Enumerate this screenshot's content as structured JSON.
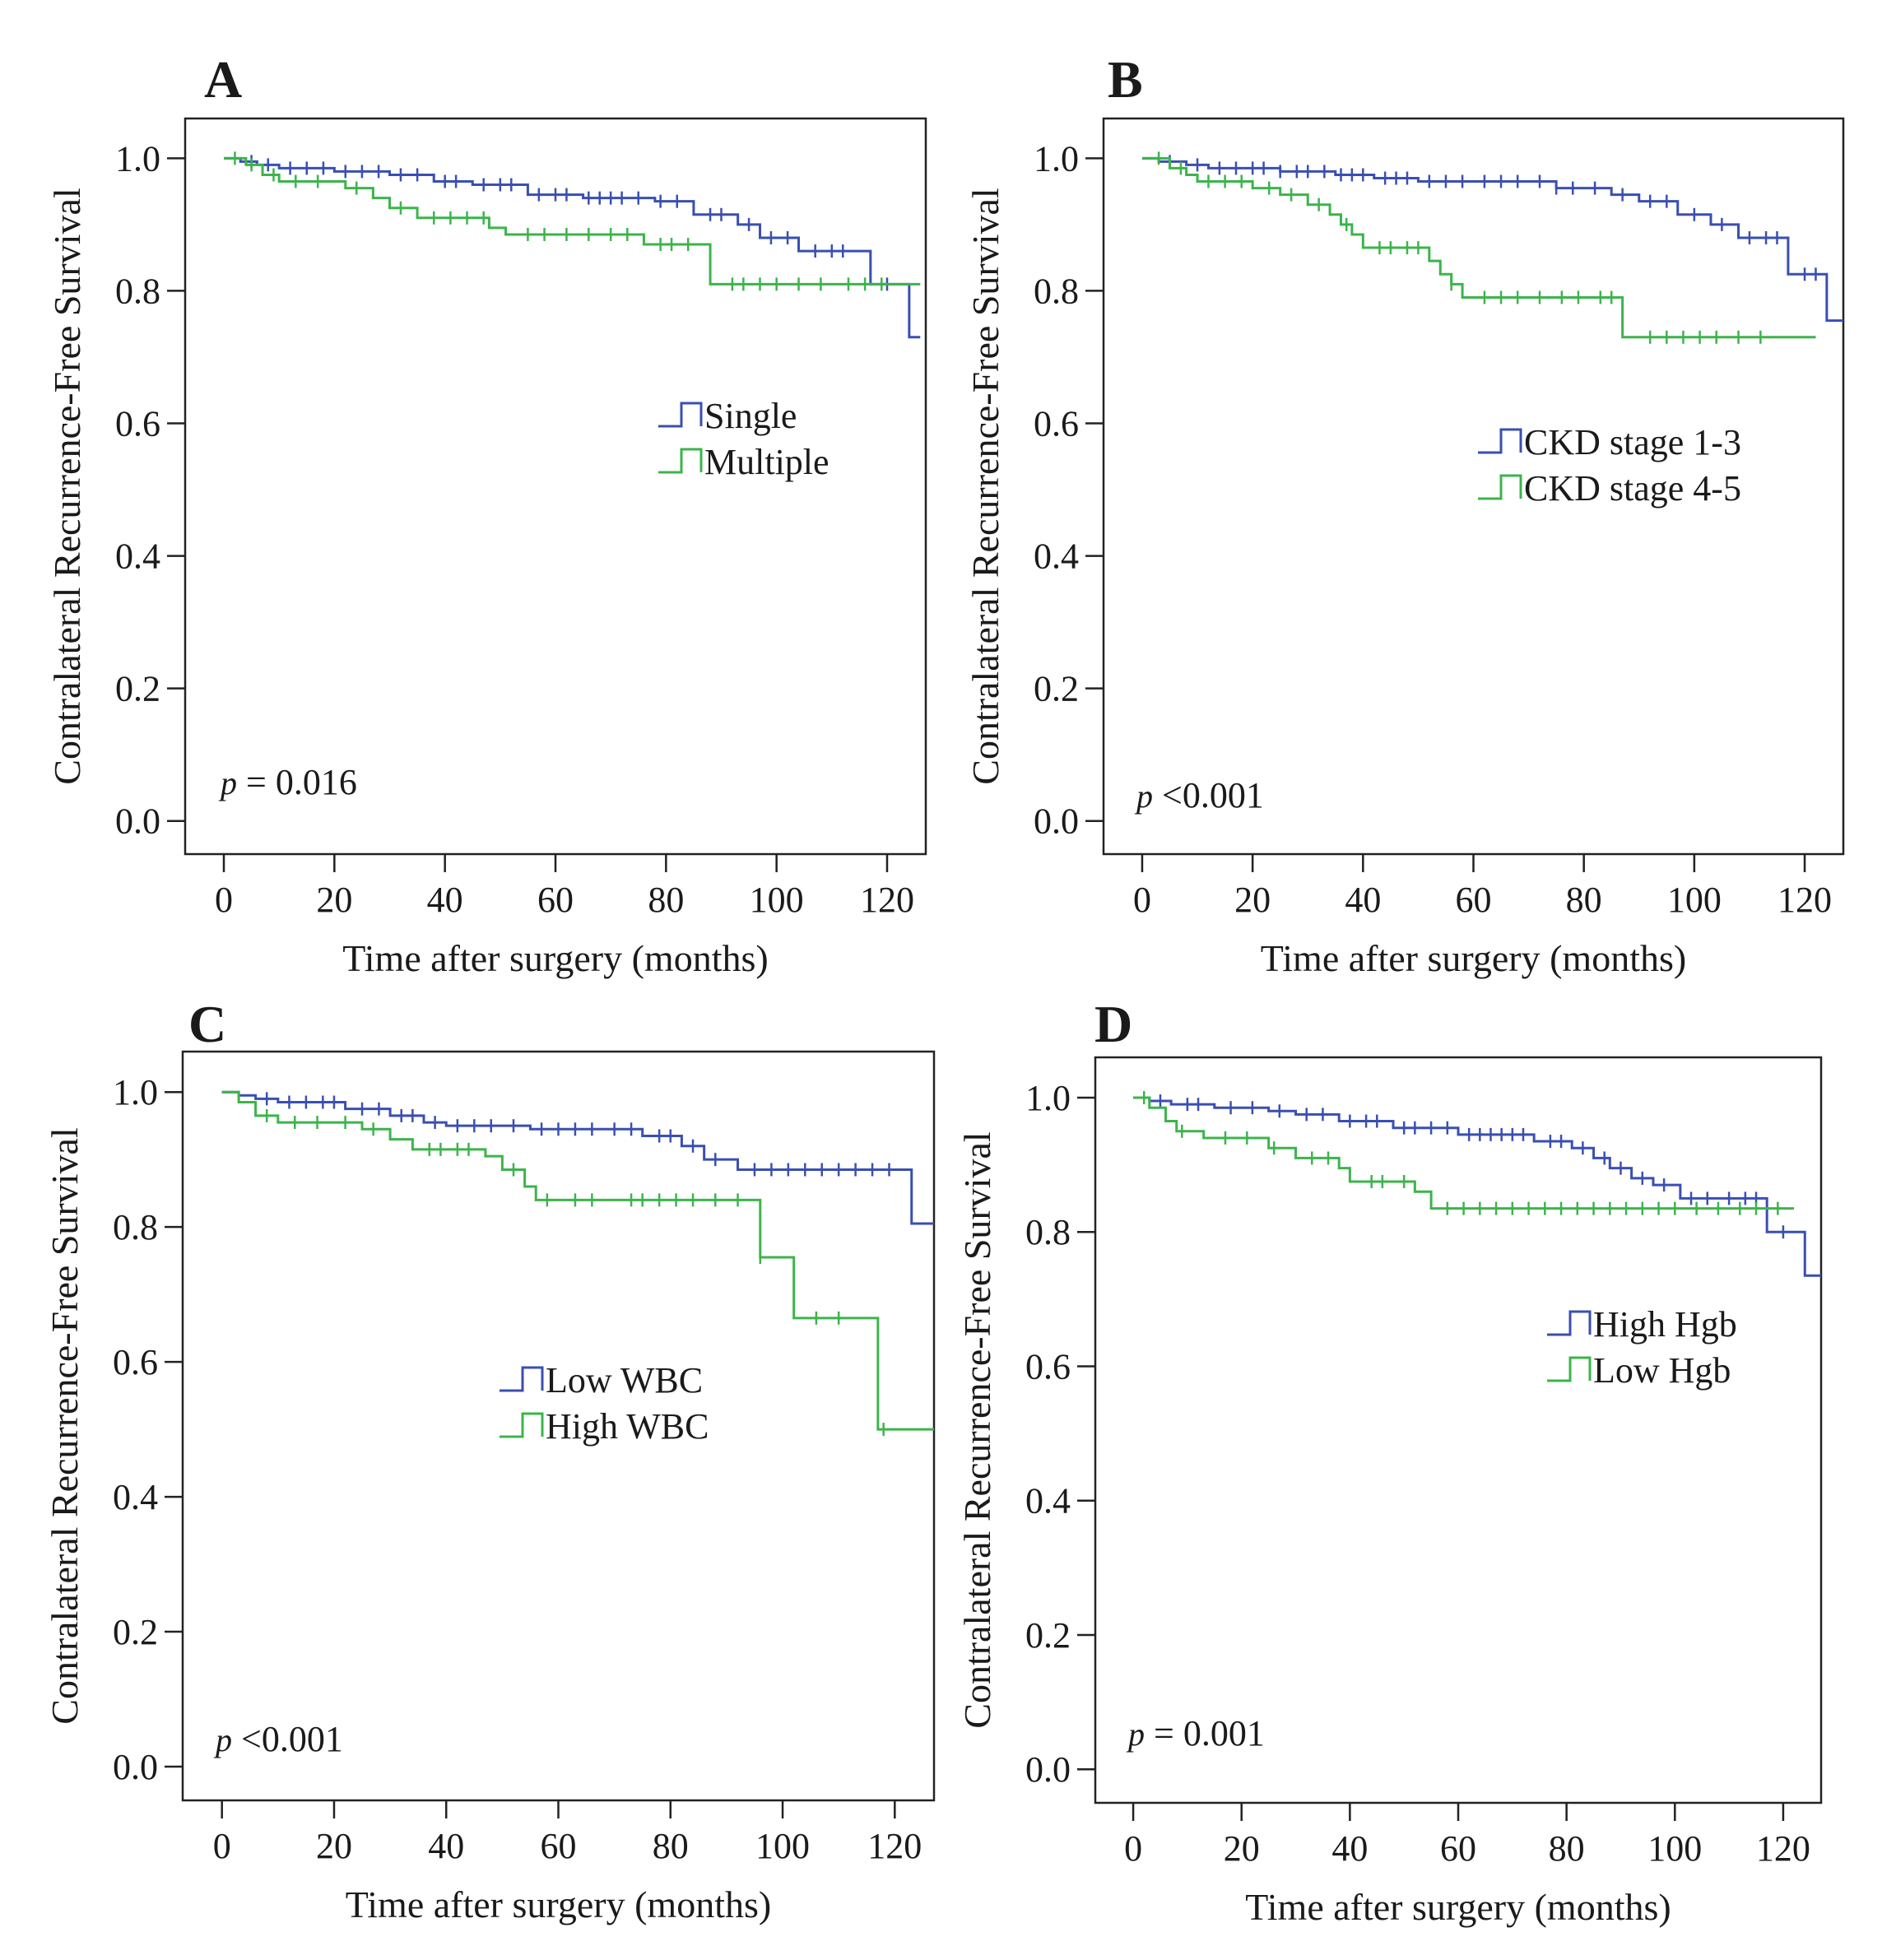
{
  "chart_data": [
    {
      "type": "line",
      "panel_label": "A",
      "xlabel": "Time after surgery (months)",
      "ylabel": "Contralateral Recurrence-Free Survival",
      "xlim": [
        -7,
        127
      ],
      "ylim": [
        -0.05,
        1.06
      ],
      "xticks": [
        0,
        20,
        40,
        60,
        80,
        100,
        120
      ],
      "yticks": [
        0.0,
        0.2,
        0.4,
        0.6,
        0.8,
        1.0
      ],
      "p_value": {
        "symbol": "p",
        "text": " = 0.016"
      },
      "legend_position": "center-right",
      "series": [
        {
          "name": "Single",
          "color": "#3a4fb2",
          "steps": [
            [
              0,
              1.0
            ],
            [
              3,
              0.995
            ],
            [
              6,
              0.99
            ],
            [
              10,
              0.985
            ],
            [
              20,
              0.98
            ],
            [
              30,
              0.975
            ],
            [
              38,
              0.965
            ],
            [
              45,
              0.96
            ],
            [
              55,
              0.945
            ],
            [
              65,
              0.94
            ],
            [
              78,
              0.935
            ],
            [
              85,
              0.915
            ],
            [
              93,
              0.9
            ],
            [
              97,
              0.88
            ],
            [
              104,
              0.86
            ],
            [
              117,
              0.81
            ],
            [
              124,
              0.73
            ],
            [
              126,
              0.73
            ]
          ],
          "censor_x": [
            5,
            8,
            12,
            15,
            18,
            22,
            25,
            28,
            32,
            35,
            40,
            42,
            47,
            50,
            52,
            57,
            60,
            62,
            66,
            68,
            70,
            72,
            75,
            79,
            82,
            88,
            90,
            95,
            99,
            102,
            107,
            110,
            112,
            120
          ]
        },
        {
          "name": "Multiple",
          "color": "#3cb44b",
          "steps": [
            [
              0,
              1.0
            ],
            [
              4,
              0.99
            ],
            [
              7,
              0.975
            ],
            [
              10,
              0.965
            ],
            [
              22,
              0.955
            ],
            [
              27,
              0.94
            ],
            [
              30,
              0.925
            ],
            [
              35,
              0.91
            ],
            [
              48,
              0.895
            ],
            [
              51,
              0.885
            ],
            [
              76,
              0.87
            ],
            [
              88,
              0.81
            ],
            [
              126,
              0.81
            ]
          ],
          "censor_x": [
            2,
            5,
            9,
            13,
            17,
            24,
            32,
            38,
            41,
            44,
            47,
            55,
            58,
            62,
            66,
            70,
            73,
            79,
            81,
            84,
            92,
            94,
            97,
            100,
            104,
            108,
            113,
            116,
            119
          ]
        }
      ]
    },
    {
      "type": "line",
      "panel_label": "B",
      "xlabel": "Time after surgery (months)",
      "ylabel": "Contralateral Recurrence-Free Survival",
      "xlim": [
        -7,
        127
      ],
      "ylim": [
        -0.05,
        1.06
      ],
      "xticks": [
        0,
        20,
        40,
        60,
        80,
        100,
        120
      ],
      "yticks": [
        0.0,
        0.2,
        0.4,
        0.6,
        0.8,
        1.0
      ],
      "p_value": {
        "symbol": "p",
        "text": " <0.001"
      },
      "legend_position": "center-right",
      "series": [
        {
          "name": "CKD stage 1-3",
          "color": "#3a4fb2",
          "steps": [
            [
              0,
              1.0
            ],
            [
              3,
              0.995
            ],
            [
              8,
              0.99
            ],
            [
              12,
              0.985
            ],
            [
              25,
              0.98
            ],
            [
              35,
              0.975
            ],
            [
              42,
              0.97
            ],
            [
              50,
              0.965
            ],
            [
              75,
              0.955
            ],
            [
              85,
              0.945
            ],
            [
              90,
              0.935
            ],
            [
              97,
              0.915
            ],
            [
              103,
              0.9
            ],
            [
              108,
              0.88
            ],
            [
              117,
              0.825
            ],
            [
              124,
              0.755
            ],
            [
              127,
              0.755
            ]
          ],
          "censor_x": [
            5,
            10,
            14,
            17,
            20,
            22,
            25,
            28,
            30,
            33,
            36,
            38,
            40,
            44,
            46,
            48,
            52,
            55,
            58,
            62,
            65,
            68,
            72,
            75,
            78,
            82,
            87,
            92,
            95,
            100,
            105,
            110,
            113,
            115,
            120,
            122
          ]
        },
        {
          "name": "CKD stage 4-5",
          "color": "#3cb44b",
          "steps": [
            [
              0,
              1.0
            ],
            [
              5,
              0.985
            ],
            [
              8,
              0.975
            ],
            [
              10,
              0.965
            ],
            [
              20,
              0.955
            ],
            [
              25,
              0.945
            ],
            [
              30,
              0.93
            ],
            [
              34,
              0.915
            ],
            [
              36,
              0.9
            ],
            [
              38,
              0.885
            ],
            [
              40,
              0.865
            ],
            [
              52,
              0.845
            ],
            [
              54,
              0.825
            ],
            [
              56,
              0.81
            ],
            [
              58,
              0.79
            ],
            [
              87,
              0.73
            ],
            [
              122,
              0.73
            ]
          ],
          "censor_x": [
            3,
            7,
            12,
            15,
            18,
            23,
            27,
            32,
            37,
            43,
            45,
            48,
            50,
            56,
            62,
            65,
            68,
            72,
            76,
            79,
            83,
            85,
            92,
            95,
            98,
            101,
            104,
            108,
            112
          ]
        }
      ]
    },
    {
      "type": "line",
      "panel_label": "C",
      "xlabel": "Time after surgery (months)",
      "ylabel": "Contralateral Recurrence-Free Survival",
      "xlim": [
        -7,
        127
      ],
      "ylim": [
        -0.05,
        1.06
      ],
      "xticks": [
        0,
        20,
        40,
        60,
        80,
        100,
        120
      ],
      "yticks": [
        0.0,
        0.2,
        0.4,
        0.6,
        0.8,
        1.0
      ],
      "p_value": {
        "symbol": "p",
        "text": " <0.001"
      },
      "legend_position": "center",
      "series": [
        {
          "name": "Low WBC",
          "color": "#3a4fb2",
          "steps": [
            [
              0,
              1.0
            ],
            [
              3,
              0.995
            ],
            [
              6,
              0.99
            ],
            [
              10,
              0.985
            ],
            [
              22,
              0.975
            ],
            [
              30,
              0.965
            ],
            [
              36,
              0.955
            ],
            [
              40,
              0.95
            ],
            [
              55,
              0.945
            ],
            [
              75,
              0.935
            ],
            [
              82,
              0.92
            ],
            [
              86,
              0.9
            ],
            [
              92,
              0.885
            ],
            [
              123,
              0.805
            ],
            [
              127,
              0.805
            ]
          ],
          "censor_x": [
            8,
            12,
            15,
            18,
            20,
            25,
            28,
            32,
            34,
            38,
            42,
            45,
            48,
            52,
            57,
            60,
            63,
            66,
            70,
            73,
            78,
            80,
            84,
            88,
            95,
            98,
            101,
            104,
            107,
            110,
            113,
            116,
            119
          ]
        },
        {
          "name": "High WBC",
          "color": "#3cb44b",
          "steps": [
            [
              0,
              1.0
            ],
            [
              3,
              0.985
            ],
            [
              6,
              0.965
            ],
            [
              10,
              0.955
            ],
            [
              25,
              0.945
            ],
            [
              30,
              0.93
            ],
            [
              34,
              0.915
            ],
            [
              47,
              0.905
            ],
            [
              50,
              0.885
            ],
            [
              54,
              0.86
            ],
            [
              56,
              0.84
            ],
            [
              96,
              0.755
            ],
            [
              102,
              0.665
            ],
            [
              117,
              0.5
            ],
            [
              127,
              0.5
            ]
          ],
          "censor_x": [
            8,
            13,
            17,
            22,
            27,
            37,
            39,
            42,
            44,
            52,
            58,
            63,
            66,
            73,
            75,
            78,
            81,
            84,
            88,
            92,
            96,
            106,
            110,
            118
          ]
        }
      ]
    },
    {
      "type": "line",
      "panel_label": "D",
      "xlabel": "Time after surgery (months)",
      "ylabel": "Contralateral Recurrence-Free Survival",
      "xlim": [
        -7,
        127
      ],
      "ylim": [
        -0.05,
        1.06
      ],
      "xticks": [
        0,
        20,
        40,
        60,
        80,
        100,
        120
      ],
      "yticks": [
        0.0,
        0.2,
        0.4,
        0.6,
        0.8,
        1.0
      ],
      "p_value": {
        "symbol": "p",
        "text": " = 0.001"
      },
      "legend_position": "center-right",
      "series": [
        {
          "name": "High Hgb",
          "color": "#3a4fb2",
          "steps": [
            [
              0,
              1.0
            ],
            [
              3,
              0.995
            ],
            [
              7,
              0.99
            ],
            [
              15,
              0.985
            ],
            [
              25,
              0.98
            ],
            [
              30,
              0.975
            ],
            [
              38,
              0.965
            ],
            [
              48,
              0.955
            ],
            [
              60,
              0.945
            ],
            [
              74,
              0.935
            ],
            [
              81,
              0.925
            ],
            [
              85,
              0.91
            ],
            [
              88,
              0.895
            ],
            [
              92,
              0.88
            ],
            [
              96,
              0.87
            ],
            [
              101,
              0.85
            ],
            [
              117,
              0.8
            ],
            [
              124,
              0.735
            ],
            [
              127,
              0.735
            ]
          ],
          "censor_x": [
            5,
            10,
            12,
            18,
            22,
            27,
            32,
            35,
            40,
            43,
            45,
            50,
            52,
            55,
            58,
            62,
            64,
            66,
            68,
            70,
            72,
            77,
            79,
            83,
            87,
            90,
            94,
            98,
            103,
            106,
            110,
            113,
            115,
            120
          ]
        },
        {
          "name": "Low Hgb",
          "color": "#3cb44b",
          "steps": [
            [
              0,
              1.0
            ],
            [
              3,
              0.985
            ],
            [
              6,
              0.965
            ],
            [
              8,
              0.95
            ],
            [
              13,
              0.94
            ],
            [
              25,
              0.925
            ],
            [
              30,
              0.91
            ],
            [
              38,
              0.895
            ],
            [
              40,
              0.875
            ],
            [
              52,
              0.86
            ],
            [
              55,
              0.835
            ],
            [
              122,
              0.835
            ]
          ],
          "censor_x": [
            2,
            9,
            17,
            21,
            26,
            33,
            36,
            44,
            46,
            50,
            58,
            61,
            64,
            67,
            70,
            73,
            76,
            79,
            82,
            85,
            88,
            91,
            94,
            97,
            100,
            104,
            108,
            112,
            115,
            119
          ]
        }
      ]
    }
  ]
}
